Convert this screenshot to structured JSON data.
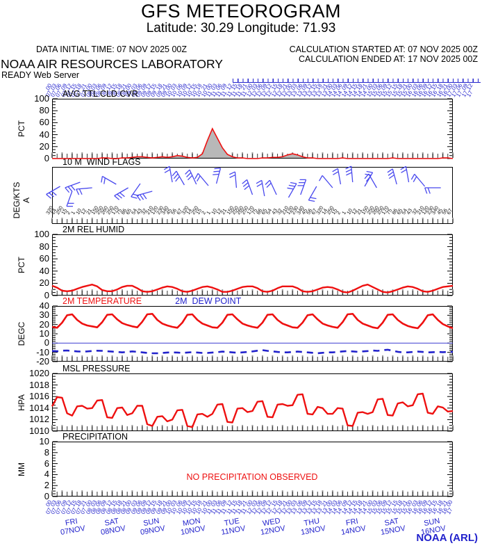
{
  "header": {
    "title": "GFS METEOROGRAM",
    "subtitle": "Latitude: 30.29 Longitude:  71.93",
    "data_initial_time": "DATA INITIAL TIME: 07 NOV 2025 00Z",
    "calc_started": "CALCULATION STARTED AT: 07 NOV 2025 00Z",
    "calc_ended": "CALCULATION ENDED AT: 17 NOV 2025 00Z",
    "org": "NOAA AIR RESOURCES LABORATORY",
    "server": "READY Web Server"
  },
  "footer": {
    "credit": "NOAA (ARL)"
  },
  "colors": {
    "red": "#ee1010",
    "blue": "#2222cc",
    "barb_blue": "#4848ee",
    "gray_fill": "#b8b8b8",
    "axis": "#000000"
  },
  "timeline": {
    "hours_cycle": [
      "00",
      "03",
      "06",
      "09",
      "12",
      "15",
      "18",
      "21"
    ],
    "dates": [
      "07",
      "08",
      "09",
      "10",
      "11",
      "12",
      "13",
      "14",
      "15",
      "16",
      "17"
    ],
    "days": [
      {
        "dow": "FRI",
        "date": "07NOV"
      },
      {
        "dow": "SAT",
        "date": "08NOV"
      },
      {
        "dow": "SUN",
        "date": "09NOV"
      },
      {
        "dow": "MON",
        "date": "10NOV"
      },
      {
        "dow": "TUE",
        "date": "11NOV"
      },
      {
        "dow": "WED",
        "date": "12NOV"
      },
      {
        "dow": "THU",
        "date": "13NOV"
      },
      {
        "dow": "FRI",
        "date": "14NOV"
      },
      {
        "dow": "SAT",
        "date": "15NOV"
      },
      {
        "dow": "SUN",
        "date": "16NOV"
      }
    ]
  },
  "chart_data": [
    {
      "type": "area",
      "title": "AVG TTL CLD CVR",
      "ylabel": "PCT",
      "ylim": [
        0,
        100
      ],
      "yticks": [
        0,
        20,
        40,
        60,
        80,
        100
      ],
      "minor_step": 5,
      "major_step": 20,
      "values": [
        0,
        0,
        0,
        0,
        0,
        0,
        0,
        0,
        0,
        0,
        1,
        1,
        0,
        0,
        1,
        1,
        2,
        3,
        3,
        2,
        1,
        2,
        3,
        2,
        3,
        5,
        4,
        2,
        1,
        2,
        8,
        30,
        50,
        34,
        18,
        7,
        3,
        1,
        1,
        0,
        0,
        0,
        1,
        1,
        2,
        2,
        3,
        6,
        8,
        6,
        3,
        1,
        1,
        0,
        0,
        0,
        0,
        0,
        1,
        0,
        0,
        0,
        0,
        0,
        0,
        0,
        0,
        0,
        1,
        0,
        0,
        0,
        0,
        0,
        0,
        0,
        0,
        0,
        1,
        1,
        0
      ]
    },
    {
      "type": "wind-barbs",
      "title": "10 M  WIND FLAGS",
      "ylabel": "DEG/KTS A",
      "barbs": [
        {
          "x": 0.02,
          "y": 28,
          "a": 210,
          "t": 3
        },
        {
          "x": 0.05,
          "y": 35,
          "a": 250,
          "t": 2
        },
        {
          "x": 0.07,
          "y": 22,
          "a": 200,
          "t": 3
        },
        {
          "x": 0.1,
          "y": 30,
          "a": 185,
          "t": 2
        },
        {
          "x": 0.16,
          "y": 25,
          "a": 150,
          "t": 2
        },
        {
          "x": 0.19,
          "y": 30,
          "a": 210,
          "t": 3
        },
        {
          "x": 0.22,
          "y": 24,
          "a": 235,
          "t": 2
        },
        {
          "x": 0.25,
          "y": 35,
          "a": 195,
          "t": 3
        },
        {
          "x": 0.3,
          "y": 22,
          "a": 100,
          "t": 2
        },
        {
          "x": 0.33,
          "y": 26,
          "a": 120,
          "t": 3
        },
        {
          "x": 0.36,
          "y": 25,
          "a": 115,
          "t": 3
        },
        {
          "x": 0.39,
          "y": 27,
          "a": 130,
          "t": 2
        },
        {
          "x": 0.41,
          "y": 24,
          "a": 75,
          "t": 3
        },
        {
          "x": 0.46,
          "y": 30,
          "a": 95,
          "t": 2
        },
        {
          "x": 0.5,
          "y": 40,
          "a": 110,
          "t": 3
        },
        {
          "x": 0.53,
          "y": 42,
          "a": 100,
          "t": 2
        },
        {
          "x": 0.56,
          "y": 40,
          "a": 115,
          "t": 2
        },
        {
          "x": 0.59,
          "y": 44,
          "a": 60,
          "t": 3
        },
        {
          "x": 0.62,
          "y": 40,
          "a": 70,
          "t": 3
        },
        {
          "x": 0.66,
          "y": 28,
          "a": 240,
          "t": 2
        },
        {
          "x": 0.7,
          "y": 30,
          "a": 130,
          "t": 1
        },
        {
          "x": 0.72,
          "y": 25,
          "a": 100,
          "t": 2
        },
        {
          "x": 0.75,
          "y": 22,
          "a": 95,
          "t": 3
        },
        {
          "x": 0.78,
          "y": 28,
          "a": 60,
          "t": 2
        },
        {
          "x": 0.81,
          "y": 30,
          "a": 120,
          "t": 2
        },
        {
          "x": 0.86,
          "y": 25,
          "a": 105,
          "t": 3
        },
        {
          "x": 0.89,
          "y": 22,
          "a": 100,
          "t": 2
        },
        {
          "x": 0.93,
          "y": 28,
          "a": 130,
          "t": 2
        },
        {
          "x": 0.97,
          "y": 30,
          "a": 180,
          "t": 2
        }
      ],
      "direction_row": [
        "320",
        "14",
        "250",
        "15",
        "2",
        "1",
        "10",
        "12",
        "21",
        "150",
        "250",
        "260",
        "250",
        "170",
        "75",
        "86",
        "65",
        "54",
        "43",
        "32",
        "210",
        "120",
        "230",
        "340",
        "45",
        "56",
        "67"
      ]
    },
    {
      "type": "line",
      "title": "2M REL HUMID",
      "ylabel": "PCT",
      "ylim": [
        0,
        100
      ],
      "yticks": [
        0,
        20,
        40,
        60,
        80,
        100
      ],
      "minor_step": 5,
      "major_step": 20,
      "values": [
        16,
        13,
        8,
        7,
        8,
        11,
        14,
        16,
        18,
        15,
        9,
        7,
        7,
        10,
        14,
        16,
        16,
        12,
        7,
        6,
        7,
        10,
        13,
        15,
        14,
        11,
        7,
        6,
        8,
        11,
        14,
        15,
        13,
        10,
        6,
        6,
        8,
        11,
        14,
        15,
        15,
        12,
        7,
        6,
        8,
        12,
        15,
        15,
        15,
        12,
        7,
        6,
        7,
        10,
        13,
        14,
        13,
        10,
        6,
        5,
        8,
        12,
        16,
        18,
        14,
        10,
        6,
        5,
        7,
        10,
        13,
        15,
        14,
        11,
        7,
        6,
        8,
        11,
        14,
        15,
        16
      ]
    },
    {
      "type": "multi-line",
      "ylabel": "DEGC",
      "ylim": [
        -20,
        40
      ],
      "yticks": [
        -20,
        -10,
        0,
        10,
        20,
        30,
        40
      ],
      "minor_step": 2,
      "major_step": 10,
      "zero_line": 0,
      "series": [
        {
          "name": "2M TEMPERATURE",
          "style": "solid",
          "color": "#ee1010",
          "values": [
            17.5,
            16.5,
            22,
            30,
            31,
            25,
            21,
            19,
            18,
            17,
            22.5,
            30.5,
            31,
            25.5,
            21.5,
            19.5,
            18,
            17,
            23,
            31,
            31.5,
            25,
            21,
            19,
            17.5,
            16.5,
            22,
            30.5,
            31,
            25,
            21,
            19,
            17,
            16.5,
            22,
            30.5,
            31,
            25.5,
            21,
            19,
            17.5,
            16.5,
            22,
            30.5,
            31,
            25,
            21,
            19,
            17,
            16.5,
            22,
            30,
            31,
            25.5,
            21,
            19,
            17.5,
            16.5,
            22.5,
            31,
            31.5,
            25,
            21,
            19,
            17,
            16,
            22,
            30.5,
            31,
            25,
            21,
            18.5,
            17,
            16,
            22,
            30,
            31,
            25,
            20.5,
            18,
            16
          ]
        },
        {
          "name": "2M  DEW POINT",
          "style": "dashed",
          "color": "#2222cc",
          "values": [
            -8.5,
            -8.8,
            -8.2,
            -8,
            -8.5,
            -9,
            -9.2,
            -9,
            -8.6,
            -8.2,
            -8.4,
            -8.8,
            -9.2,
            -9.6,
            -10,
            -9.6,
            -9,
            -9.4,
            -10,
            -10.6,
            -11,
            -11,
            -10.6,
            -10.2,
            -10,
            -10.2,
            -10.6,
            -10.2,
            -9.8,
            -10.2,
            -10.6,
            -10.6,
            -10.2,
            -9.8,
            -9.2,
            -9.6,
            -10,
            -10.4,
            -10,
            -9.6,
            -9,
            -8.2,
            -7.6,
            -8.4,
            -9,
            -9.6,
            -10,
            -10,
            -9.6,
            -9.2,
            -9.6,
            -10,
            -10.5,
            -11,
            -10.5,
            -10,
            -10,
            -9.6,
            -9,
            -8.6,
            -9,
            -9.4,
            -9,
            -8.6,
            -8,
            -8.4,
            -7.6,
            -7.2,
            -8.2,
            -9.4,
            -10,
            -10,
            -9.6,
            -9.2,
            -9.6,
            -10,
            -9.8,
            -9.6,
            -9.8,
            -9.6,
            -9.5
          ]
        }
      ]
    },
    {
      "type": "line",
      "title": "MSL PRESSURE",
      "ylabel": "HPA",
      "ylim": [
        1010,
        1020
      ],
      "yticks": [
        1010,
        1012,
        1014,
        1016,
        1018,
        1020
      ],
      "minor_step": 0.5,
      "major_step": 2,
      "values": [
        1014.3,
        1015.9,
        1015.8,
        1013.1,
        1012.7,
        1014.3,
        1014.4,
        1013.9,
        1014.0,
        1015.3,
        1015.4,
        1012.4,
        1012.3,
        1014.0,
        1014.1,
        1012.8,
        1013.1,
        1014.4,
        1014.4,
        1011.2,
        1010.9,
        1012.5,
        1012.6,
        1011.7,
        1012.0,
        1013.6,
        1013.7,
        1010.9,
        1010.7,
        1012.9,
        1013.0,
        1012.5,
        1013.0,
        1014.6,
        1014.7,
        1011.6,
        1011.5,
        1013.9,
        1014.0,
        1013.3,
        1013.5,
        1015.1,
        1015.2,
        1012.5,
        1012.4,
        1014.6,
        1014.7,
        1014.4,
        1014.5,
        1016.3,
        1016.4,
        1013.0,
        1012.9,
        1014.2,
        1014.0,
        1013.0,
        1013.0,
        1014.0,
        1013.9,
        1011.0,
        1010.9,
        1013.2,
        1013.3,
        1013.0,
        1013.3,
        1015.5,
        1015.6,
        1012.8,
        1012.7,
        1014.8,
        1015.0,
        1014.3,
        1014.5,
        1016.4,
        1016.5,
        1013.2,
        1013.0,
        1014.3,
        1014.1,
        1013.4,
        1013.5
      ]
    },
    {
      "type": "line",
      "title": "PRECIPITATION",
      "ylabel": "MM",
      "ylim": [
        0,
        10
      ],
      "yticks": [
        0,
        2,
        4,
        6,
        8,
        10
      ],
      "minor_step": 0.5,
      "major_step": 2,
      "values": [],
      "annotation": "NO PRECIPITATION OBSERVED"
    }
  ]
}
